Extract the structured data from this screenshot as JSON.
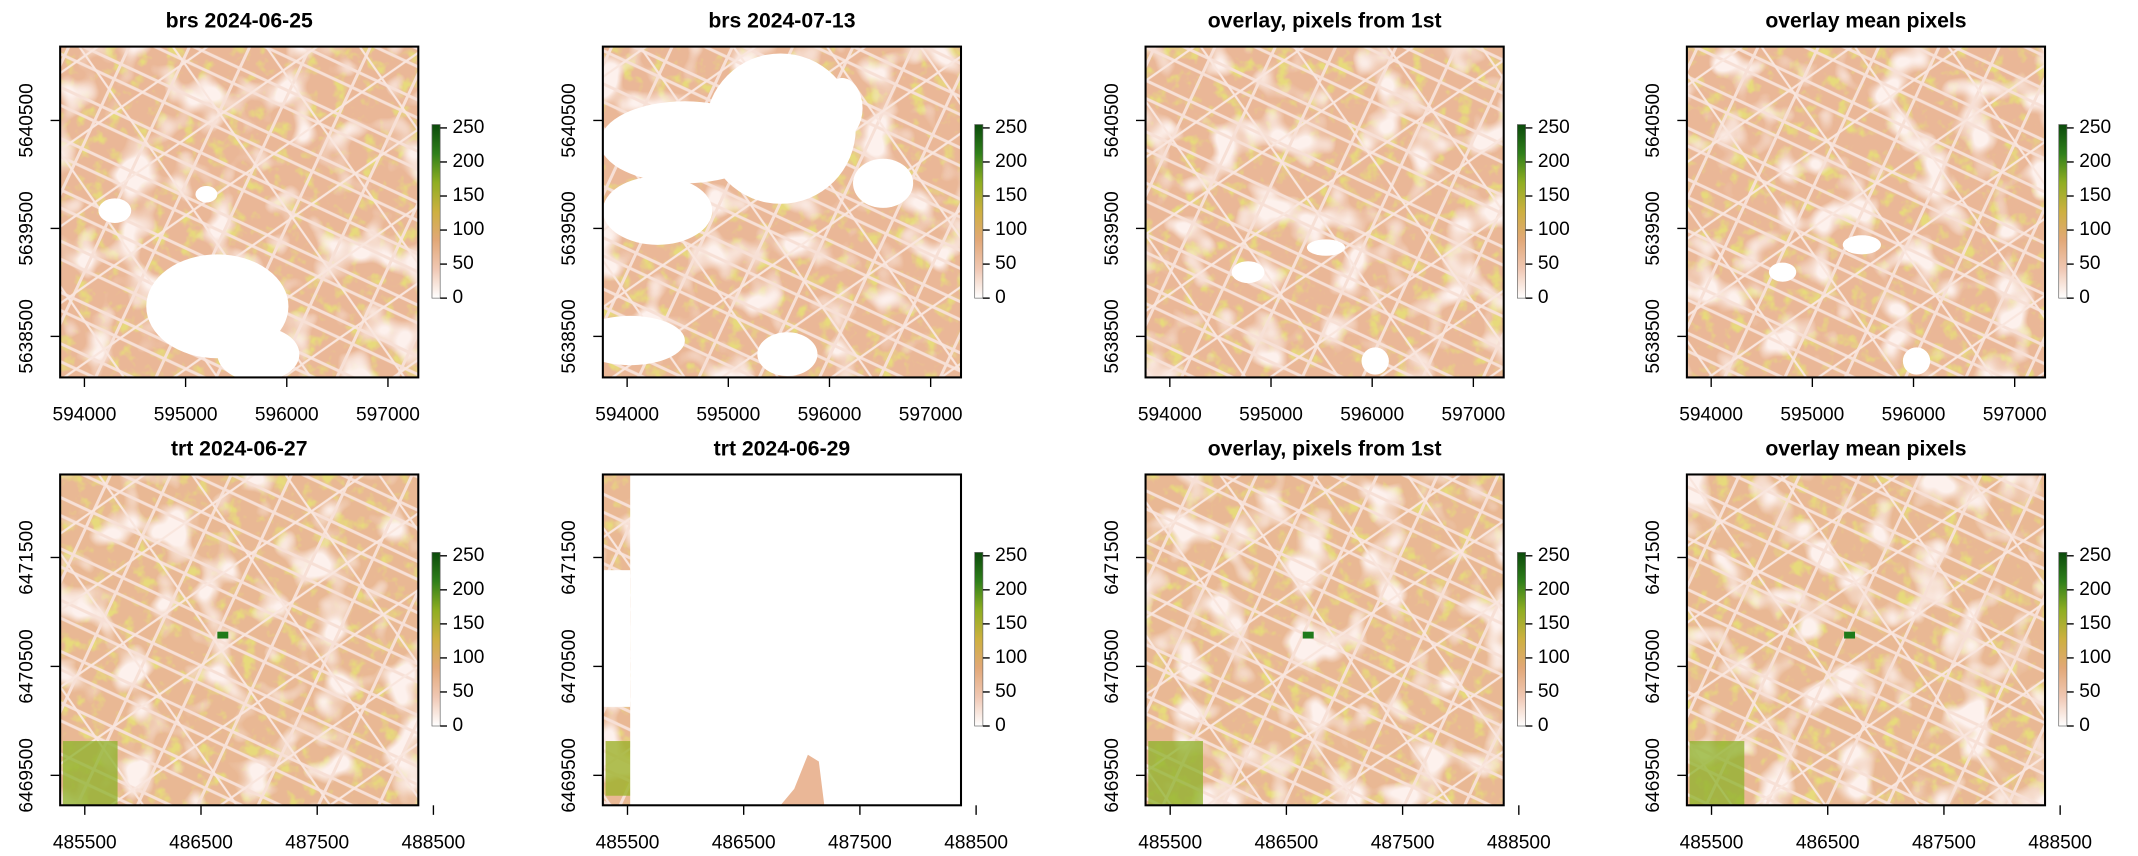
{
  "chart_data": [
    {
      "type": "raster",
      "title": "brs 2024-06-25",
      "xlim": [
        593760,
        597300
      ],
      "xticks": [
        594000,
        595000,
        596000,
        597000
      ],
      "ylim": [
        5638120,
        5641184
      ],
      "yticks": [
        5638500,
        5639500,
        5640500
      ],
      "zlim": [
        0,
        255
      ],
      "zticks": [
        0,
        50,
        100,
        150,
        200,
        250
      ],
      "colors": [
        "#ffffff",
        "#f0c8b4",
        "#e2a878",
        "#cdb040",
        "#8fae22",
        "#2f7f1a",
        "#0b4a0b"
      ]
    },
    {
      "type": "raster",
      "title": "brs 2024-07-13",
      "xlim": [
        593760,
        597300
      ],
      "xticks": [
        594000,
        595000,
        596000,
        597000
      ],
      "ylim": [
        5638120,
        5641184
      ],
      "yticks": [
        5638500,
        5639500,
        5640500
      ],
      "zlim": [
        0,
        255
      ],
      "zticks": [
        0,
        50,
        100,
        150,
        200,
        250
      ],
      "colors": [
        "#ffffff",
        "#f0c8b4",
        "#e2a878",
        "#cdb040",
        "#8fae22",
        "#2f7f1a",
        "#0b4a0b"
      ]
    },
    {
      "type": "raster",
      "title": "overlay, pixels from 1st",
      "xlim": [
        593760,
        597300
      ],
      "xticks": [
        594000,
        595000,
        596000,
        597000
      ],
      "ylim": [
        5638120,
        5641184
      ],
      "yticks": [
        5638500,
        5639500,
        5640500
      ],
      "zlim": [
        0,
        255
      ],
      "zticks": [
        0,
        50,
        100,
        150,
        200,
        250
      ],
      "colors": [
        "#ffffff",
        "#f0c8b4",
        "#e2a878",
        "#cdb040",
        "#8fae22",
        "#2f7f1a",
        "#0b4a0b"
      ]
    },
    {
      "type": "raster",
      "title": "overlay mean pixels",
      "xlim": [
        593760,
        597300
      ],
      "xticks": [
        594000,
        595000,
        596000,
        597000
      ],
      "ylim": [
        5638120,
        5641184
      ],
      "yticks": [
        5638500,
        5639500,
        5640500
      ],
      "zlim": [
        0,
        255
      ],
      "zticks": [
        0,
        50,
        100,
        150,
        200,
        250
      ],
      "colors": [
        "#ffffff",
        "#f0c8b4",
        "#e2a878",
        "#cdb040",
        "#8fae22",
        "#2f7f1a",
        "#0b4a0b"
      ]
    },
    {
      "type": "raster",
      "title": "trt 2024-06-27",
      "xlim": [
        485288,
        488370
      ],
      "xticks": [
        485500,
        486500,
        487500,
        488500
      ],
      "ylim": [
        6469225,
        6472262
      ],
      "yticks": [
        6469500,
        6470500,
        6471500
      ],
      "zlim": [
        0,
        255
      ],
      "zticks": [
        0,
        50,
        100,
        150,
        200,
        250
      ],
      "colors": [
        "#ffffff",
        "#f0c8b4",
        "#e2a878",
        "#cdb040",
        "#8fae22",
        "#2f7f1a",
        "#0b4a0b"
      ]
    },
    {
      "type": "raster",
      "title": "trt 2024-06-29",
      "xlim": [
        485288,
        488370
      ],
      "xticks": [
        485500,
        486500,
        487500,
        488500
      ],
      "ylim": [
        6469225,
        6472262
      ],
      "yticks": [
        6469500,
        6470500,
        6471500
      ],
      "zlim": [
        0,
        255
      ],
      "zticks": [
        0,
        50,
        100,
        150,
        200,
        250
      ],
      "colors": [
        "#ffffff",
        "#f0c8b4",
        "#e2a878",
        "#cdb040",
        "#8fae22",
        "#2f7f1a",
        "#0b4a0b"
      ]
    },
    {
      "type": "raster",
      "title": "overlay, pixels from 1st",
      "xlim": [
        485288,
        488370
      ],
      "xticks": [
        485500,
        486500,
        487500,
        488500
      ],
      "ylim": [
        6469225,
        6472262
      ],
      "yticks": [
        6469500,
        6470500,
        6471500
      ],
      "zlim": [
        0,
        255
      ],
      "zticks": [
        0,
        50,
        100,
        150,
        200,
        250
      ],
      "colors": [
        "#ffffff",
        "#f0c8b4",
        "#e2a878",
        "#cdb040",
        "#8fae22",
        "#2f7f1a",
        "#0b4a0b"
      ]
    },
    {
      "type": "raster",
      "title": "overlay mean pixels",
      "xlim": [
        485288,
        488370
      ],
      "xticks": [
        485500,
        486500,
        487500,
        488500
      ],
      "ylim": [
        6469225,
        6472262
      ],
      "yticks": [
        6469500,
        6470500,
        6471500
      ],
      "zlim": [
        0,
        255
      ],
      "zticks": [
        0,
        50,
        100,
        150,
        200,
        250
      ],
      "colors": [
        "#ffffff",
        "#f0c8b4",
        "#e2a878",
        "#cdb040",
        "#8fae22",
        "#2f7f1a",
        "#0b4a0b"
      ]
    }
  ]
}
